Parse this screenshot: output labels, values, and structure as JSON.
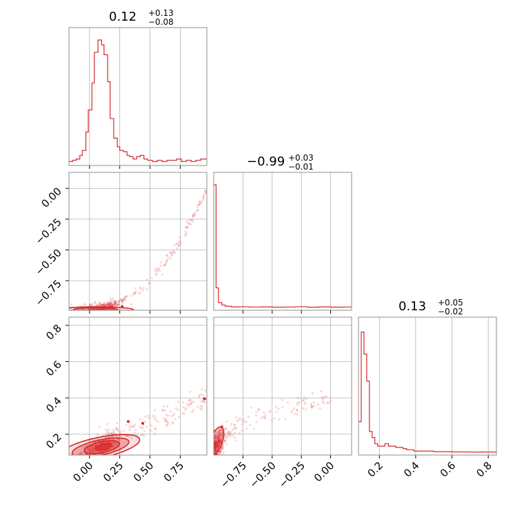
{
  "chart_data": {
    "type": "corner",
    "color": "#d62728",
    "grid": true,
    "panels": [
      {
        "kind": "histogram",
        "row": 0,
        "col": 0,
        "title": {
          "median": "0.12",
          "plus": "+0.13",
          "minus": "−0.08"
        },
        "xlim": [
          -0.17,
          0.97
        ],
        "bins": [
          [
            -0.17,
            0.01
          ],
          [
            -0.14,
            0.02
          ],
          [
            -0.11,
            0.03
          ],
          [
            -0.08,
            0.06
          ],
          [
            -0.06,
            0.1
          ],
          [
            -0.03,
            0.25
          ],
          [
            -0.01,
            0.43
          ],
          [
            0.02,
            0.65
          ],
          [
            0.04,
            0.9
          ],
          [
            0.07,
            1.0
          ],
          [
            0.1,
            0.96
          ],
          [
            0.12,
            0.88
          ],
          [
            0.15,
            0.66
          ],
          [
            0.17,
            0.36
          ],
          [
            0.2,
            0.2
          ],
          [
            0.23,
            0.13
          ],
          [
            0.25,
            0.1
          ],
          [
            0.28,
            0.09
          ],
          [
            0.31,
            0.06
          ],
          [
            0.33,
            0.05
          ],
          [
            0.36,
            0.03
          ],
          [
            0.39,
            0.05
          ],
          [
            0.42,
            0.06
          ],
          [
            0.45,
            0.03
          ],
          [
            0.48,
            0.02
          ],
          [
            0.52,
            0.01
          ],
          [
            0.56,
            0.02
          ],
          [
            0.6,
            0.01
          ],
          [
            0.64,
            0.02
          ],
          [
            0.68,
            0.02
          ],
          [
            0.72,
            0.03
          ],
          [
            0.76,
            0.01
          ],
          [
            0.8,
            0.02
          ],
          [
            0.84,
            0.01
          ],
          [
            0.88,
            0.02
          ],
          [
            0.92,
            0.03
          ]
        ]
      },
      {
        "kind": "scatter",
        "row": 1,
        "col": 0,
        "xlim": [
          -0.17,
          0.97
        ],
        "ylim": [
          -0.99,
          0.13
        ],
        "yticks": [
          {
            "v": 0.0,
            "label": "0.00"
          },
          {
            "v": -0.25,
            "label": "−0.25"
          },
          {
            "v": -0.5,
            "label": "−0.50"
          },
          {
            "v": -0.75,
            "label": "−0.75"
          }
        ]
      },
      {
        "kind": "histogram",
        "row": 1,
        "col": 1,
        "title": {
          "median": "−0.99",
          "plus": "+0.03",
          "minus": "−0.01"
        },
        "xlim": [
          -1.0,
          0.18
        ],
        "bins": [
          [
            -1.0,
            1.0
          ],
          [
            -0.98,
            0.16
          ],
          [
            -0.96,
            0.04
          ],
          [
            -0.93,
            0.02
          ],
          [
            -0.9,
            0.01
          ],
          [
            -0.85,
            0.005
          ],
          [
            -0.78,
            0.006
          ],
          [
            -0.7,
            0.004
          ],
          [
            -0.6,
            0.005
          ],
          [
            -0.5,
            0.003
          ],
          [
            -0.4,
            0.004
          ],
          [
            -0.3,
            0.006
          ],
          [
            -0.2,
            0.003
          ],
          [
            -0.1,
            0.005
          ],
          [
            0.0,
            0.003
          ],
          [
            0.1,
            0.004
          ]
        ]
      },
      {
        "kind": "scatter",
        "row": 2,
        "col": 0,
        "xlim": [
          -0.17,
          0.97
        ],
        "ylim": [
          0.085,
          0.845
        ],
        "yticks": [
          {
            "v": 0.2,
            "label": "0.2"
          },
          {
            "v": 0.4,
            "label": "0.4"
          },
          {
            "v": 0.6,
            "label": "0.6"
          },
          {
            "v": 0.8,
            "label": "0.8"
          }
        ],
        "xticks": [
          {
            "v": 0.0,
            "label": "0.00"
          },
          {
            "v": 0.25,
            "label": "0.25"
          },
          {
            "v": 0.5,
            "label": "0.50"
          },
          {
            "v": 0.75,
            "label": "0.75"
          }
        ]
      },
      {
        "kind": "scatter",
        "row": 2,
        "col": 1,
        "xlim": [
          -1.0,
          0.18
        ],
        "ylim": [
          0.085,
          0.845
        ],
        "xticks": [
          {
            "v": -0.75,
            "label": "−0.75"
          },
          {
            "v": -0.5,
            "label": "−0.50"
          },
          {
            "v": -0.25,
            "label": "−0.25"
          },
          {
            "v": 0.0,
            "label": "0.00"
          }
        ]
      },
      {
        "kind": "histogram",
        "row": 2,
        "col": 2,
        "title": {
          "median": "0.13",
          "plus": "+0.05",
          "minus": "−0.02"
        },
        "xlim": [
          0.085,
          0.845
        ],
        "xticks": [
          {
            "v": 0.2,
            "label": "0.2"
          },
          {
            "v": 0.4,
            "label": "0.4"
          },
          {
            "v": 0.6,
            "label": "0.6"
          },
          {
            "v": 0.8,
            "label": "0.8"
          }
        ],
        "bins": [
          [
            0.085,
            0.25
          ],
          [
            0.1,
            0.98
          ],
          [
            0.115,
            0.8
          ],
          [
            0.13,
            0.58
          ],
          [
            0.145,
            0.17
          ],
          [
            0.16,
            0.12
          ],
          [
            0.175,
            0.07
          ],
          [
            0.19,
            0.05
          ],
          [
            0.21,
            0.05
          ],
          [
            0.23,
            0.07
          ],
          [
            0.25,
            0.05
          ],
          [
            0.27,
            0.05
          ],
          [
            0.29,
            0.04
          ],
          [
            0.31,
            0.04
          ],
          [
            0.33,
            0.03
          ],
          [
            0.35,
            0.02
          ],
          [
            0.37,
            0.02
          ],
          [
            0.39,
            0.01
          ],
          [
            0.41,
            0.01
          ],
          [
            0.45,
            0.01
          ],
          [
            0.5,
            0.005
          ],
          [
            0.6,
            0.003
          ],
          [
            0.7,
            0.002
          ],
          [
            0.8,
            0.002
          ]
        ]
      }
    ]
  }
}
